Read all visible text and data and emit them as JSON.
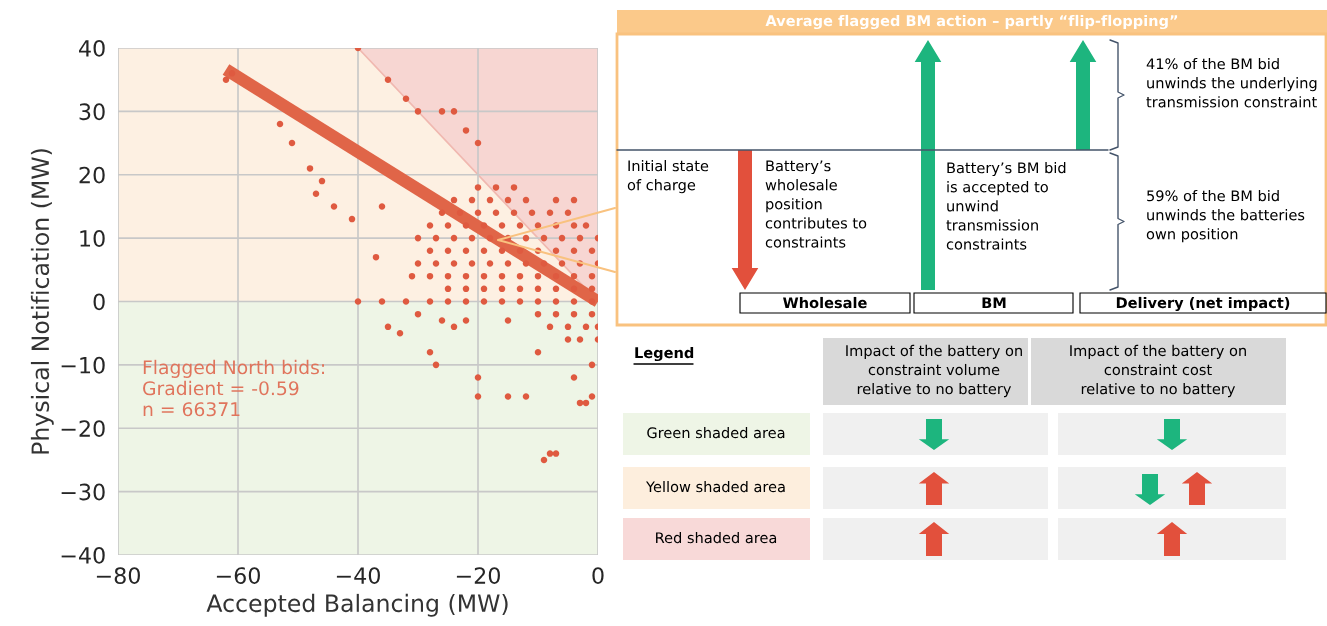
{
  "chart_data": [
    {
      "type": "scatter",
      "xlabel": "Accepted Balancing (MW)",
      "ylabel": "Physical Notification (MW)",
      "xlim": [
        -80,
        0
      ],
      "ylim": [
        -40,
        40
      ],
      "xticks": [
        {
          "value": -80,
          "label": "−80"
        },
        {
          "value": -60,
          "label": "−60"
        },
        {
          "value": -40,
          "label": "−40"
        },
        {
          "value": -20,
          "label": "−20"
        },
        0
      ],
      "yticks": [
        {
          "value": -40,
          "label": "−40"
        },
        {
          "value": -30,
          "label": "−30"
        },
        {
          "value": -20,
          "label": "−20"
        },
        {
          "value": -10,
          "label": "−10"
        },
        0,
        10,
        20,
        30,
        40
      ],
      "grid": true,
      "bands": [
        {
          "axis": "y",
          "from": -40,
          "to": 0,
          "color": "#eef5e6"
        },
        {
          "axis": "y",
          "from": 0,
          "to": 40,
          "color": "#fdf0e2"
        }
      ],
      "series": [
        {
          "type": "area",
          "x": [
            -40,
            0
          ],
          "values": [
            40,
            0
          ],
          "color": "#f7d6d2"
        },
        {
          "type": "scatter",
          "color": "#df5a40",
          "marker": "circle",
          "x": [
            -20,
            -17,
            -14,
            -24,
            -21,
            -18,
            -15,
            -12,
            -7,
            -4,
            -26,
            -23,
            -20,
            -17,
            -14,
            -11,
            -8,
            -5,
            -28,
            -25,
            -22,
            -19,
            -16,
            -13,
            -10,
            -7,
            -4,
            -2,
            -30,
            -27,
            -24,
            -21,
            -18,
            -15,
            -12,
            -9,
            -6,
            -3,
            0,
            -28,
            -25,
            -22,
            -19,
            -16,
            -13,
            -10,
            -7,
            -4,
            -1,
            -30,
            -27,
            -24,
            -21,
            -18,
            -15,
            -12,
            -9,
            -6,
            -3,
            0,
            -28,
            -25,
            -22,
            -19,
            -16,
            -13,
            -10,
            -7,
            -4,
            -1,
            -25,
            -22,
            -19,
            -16,
            -13,
            -10,
            -7,
            -4,
            -1,
            -40,
            -36,
            -32,
            -28,
            -25,
            -22,
            -19,
            -16,
            -13,
            -10,
            -7,
            -4,
            -1,
            -10,
            -7,
            -4,
            -1,
            -8,
            -5,
            -2,
            0,
            -5,
            -3,
            0,
            -62,
            -61,
            -53,
            -51,
            -48,
            -47,
            -46,
            -44,
            -41,
            -40,
            -35,
            -32,
            -30,
            -26,
            -24,
            -22,
            -20,
            -37,
            -36,
            -35,
            -33,
            -31,
            -30,
            -28,
            -27,
            -26,
            -24,
            -22,
            -20,
            -20,
            -15,
            -12,
            -9,
            -8,
            -7,
            -3,
            -2,
            -1,
            -4,
            -1,
            -15,
            -10
          ],
          "values": [
            18,
            18,
            18,
            16,
            16,
            16,
            16,
            16,
            16,
            16,
            14,
            14,
            14,
            14,
            14,
            14,
            14,
            14,
            12,
            12,
            12,
            12,
            12,
            12,
            12,
            12,
            12,
            12,
            10,
            10,
            10,
            10,
            10,
            10,
            10,
            10,
            10,
            10,
            10,
            8,
            8,
            8,
            8,
            8,
            8,
            8,
            8,
            8,
            8,
            6,
            6,
            6,
            6,
            6,
            6,
            6,
            6,
            6,
            6,
            6,
            4,
            4,
            4,
            4,
            4,
            4,
            4,
            4,
            4,
            4,
            2,
            2,
            2,
            2,
            2,
            2,
            2,
            2,
            2,
            0,
            0,
            0,
            0,
            0,
            0,
            0,
            0,
            0,
            0,
            0,
            0,
            0,
            -2,
            -2,
            -2,
            -2,
            -4,
            -4,
            -4,
            -4,
            -6,
            -6,
            -6,
            35,
            36,
            28,
            25,
            21,
            17,
            19,
            15,
            13,
            40,
            35,
            32,
            30,
            30,
            30,
            27,
            25,
            7,
            15,
            -4,
            -5,
            4,
            -2,
            -8,
            -10,
            -3,
            -4,
            -3,
            -12,
            -15,
            -15,
            -15,
            -25,
            -24,
            -24,
            -16,
            -16,
            -15,
            -12,
            -10,
            -3,
            -8
          ]
        },
        {
          "type": "line",
          "x": [
            -62,
            0
          ],
          "values": [
            36.6,
            0.0
          ],
          "color": "#e06548"
        }
      ],
      "annotations": [
        "Flagged North bids:\nGradient = -0.59\nn = 66371"
      ]
    },
    {
      "type": "other",
      "title": "Average flagged BM action – partly “flip-flopping”",
      "annotations": [
        "Initial state\nof charge",
        "Battery’s\nwholesale\nposition\ncontributes to\nconstraints",
        "Battery’s BM bid\nis accepted to\nunwind\ntransmission\nconstraints",
        "41% of the BM bid\nunwinds the underlying\ntransmission constraint",
        "59% of the BM bid\nunwinds the batteries\nown position",
        "Wholesale",
        "BM",
        "Delivery (net impact)",
        "Legend",
        "Impact of the battery on\nconstraint volume\nrelative to no battery",
        "Impact of the battery on\nconstraint cost\nrelative to no battery",
        "Green shaded area",
        "Yellow shaded area",
        "Red shaded area"
      ]
    }
  ]
}
